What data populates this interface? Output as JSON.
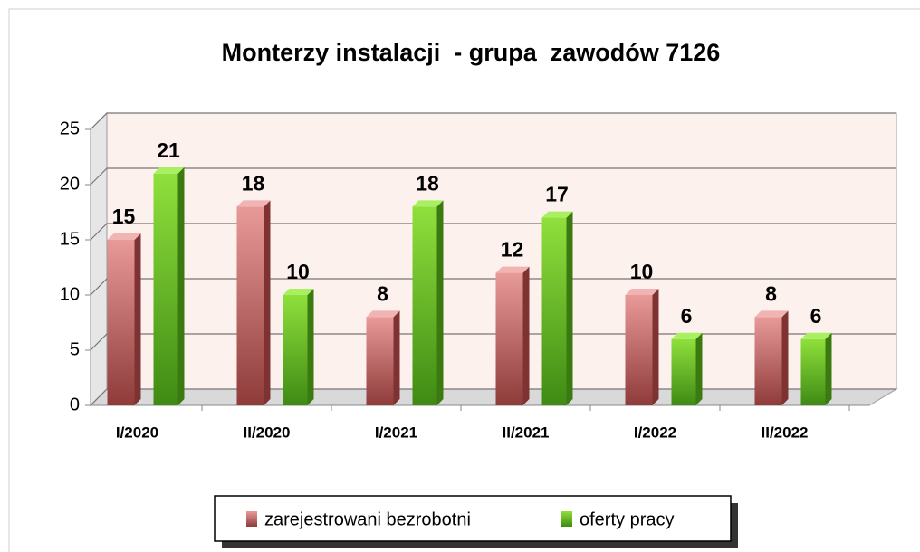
{
  "chart_data": {
    "type": "bar",
    "title": "Monterzy instalacji  - grupa  zawodów 7126",
    "categories": [
      "I/2020",
      "II/2020",
      "I/2021",
      "II/2021",
      "I/2022",
      "II/2022"
    ],
    "series": [
      {
        "name": "zarejestrowani bezrobotni",
        "color": "#c0504d",
        "values": [
          15,
          18,
          8,
          12,
          10,
          8
        ]
      },
      {
        "name": "oferty pracy",
        "color": "#6ab82a",
        "values": [
          21,
          10,
          18,
          17,
          6,
          6
        ]
      }
    ],
    "ylim": [
      0,
      25
    ],
    "yticks": [
      0,
      5,
      10,
      15,
      20,
      25
    ],
    "grid": true,
    "legend": "bottom"
  }
}
